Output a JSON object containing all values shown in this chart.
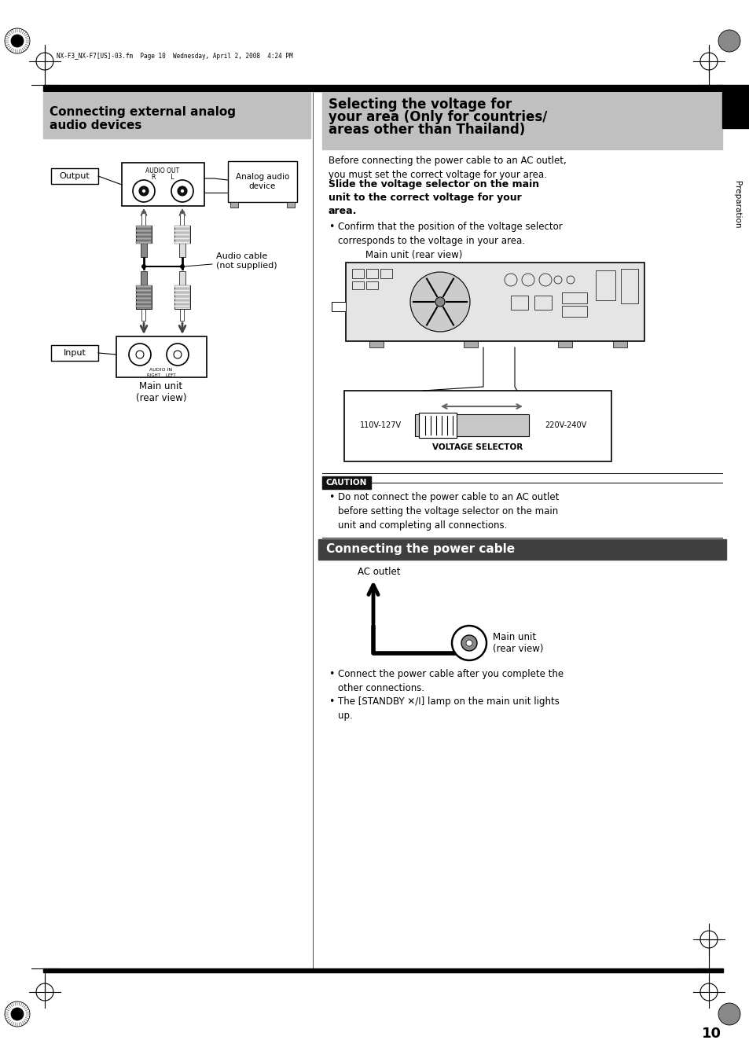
{
  "page_bg": "#ffffff",
  "top_header_text": "NX-F3_NX-F7[US]-03.fm  Page 10  Wednesday, April 2, 2008  4:24 PM",
  "left_section_title": "Connecting external analog\naudio devices",
  "right_section_title_line1": "Selecting the voltage for",
  "right_section_title_line2": "your area (Only for countries/",
  "right_section_title_line3": "areas other than Thailand)",
  "right_section_title2": "Connecting the power cable",
  "section_title_bg": "#c0c0c0",
  "section_title2_bg": "#404040",
  "section_title2_fg": "#ffffff",
  "caution_bg": "#000000",
  "caution_text": "CAUTION",
  "page_number": "10",
  "preparation_label": "Preparation",
  "body_text_right1": "Before connecting the power cable to an AC outlet,\nyou must set the correct voltage for your area.",
  "body_bold_right1": "Slide the voltage selector on the main\nunit to the correct voltage for your\narea.",
  "bullet_confirm": "Confirm that the position of the voltage selector\ncorresponds to the voltage in your area.",
  "main_unit_rear_view_label": "Main unit (rear view)",
  "voltage_selector_label": "VOLTAGE SELECTOR",
  "voltage_110_label": "110V-127V",
  "voltage_220_label": "220V-240V",
  "caution_body": "Do not connect the power cable to an AC outlet\nbefore setting the voltage selector on the main\nunit and completing all connections.",
  "ac_outlet_label": "AC outlet",
  "main_unit_rear_label": "Main unit\n(rear view)",
  "power_bullet1": "Connect the power cable after you complete the\nother connections.",
  "power_bullet2": "The [STANDBY ✕/I] lamp on the main unit lights\nup.",
  "output_label": "Output",
  "input_label": "Input",
  "analog_audio_device_label": "Analog audio\ndevice",
  "audio_cable_label": "Audio cable\n(not supplied)",
  "main_unit_rear_left": "Main unit\n(rear view)",
  "audio_out_label": "AUDIO OUT",
  "audio_out_rl": "R        L",
  "audio_in_label": "AUDIO IN",
  "audio_in_rl": "RIGHT    LEFT"
}
